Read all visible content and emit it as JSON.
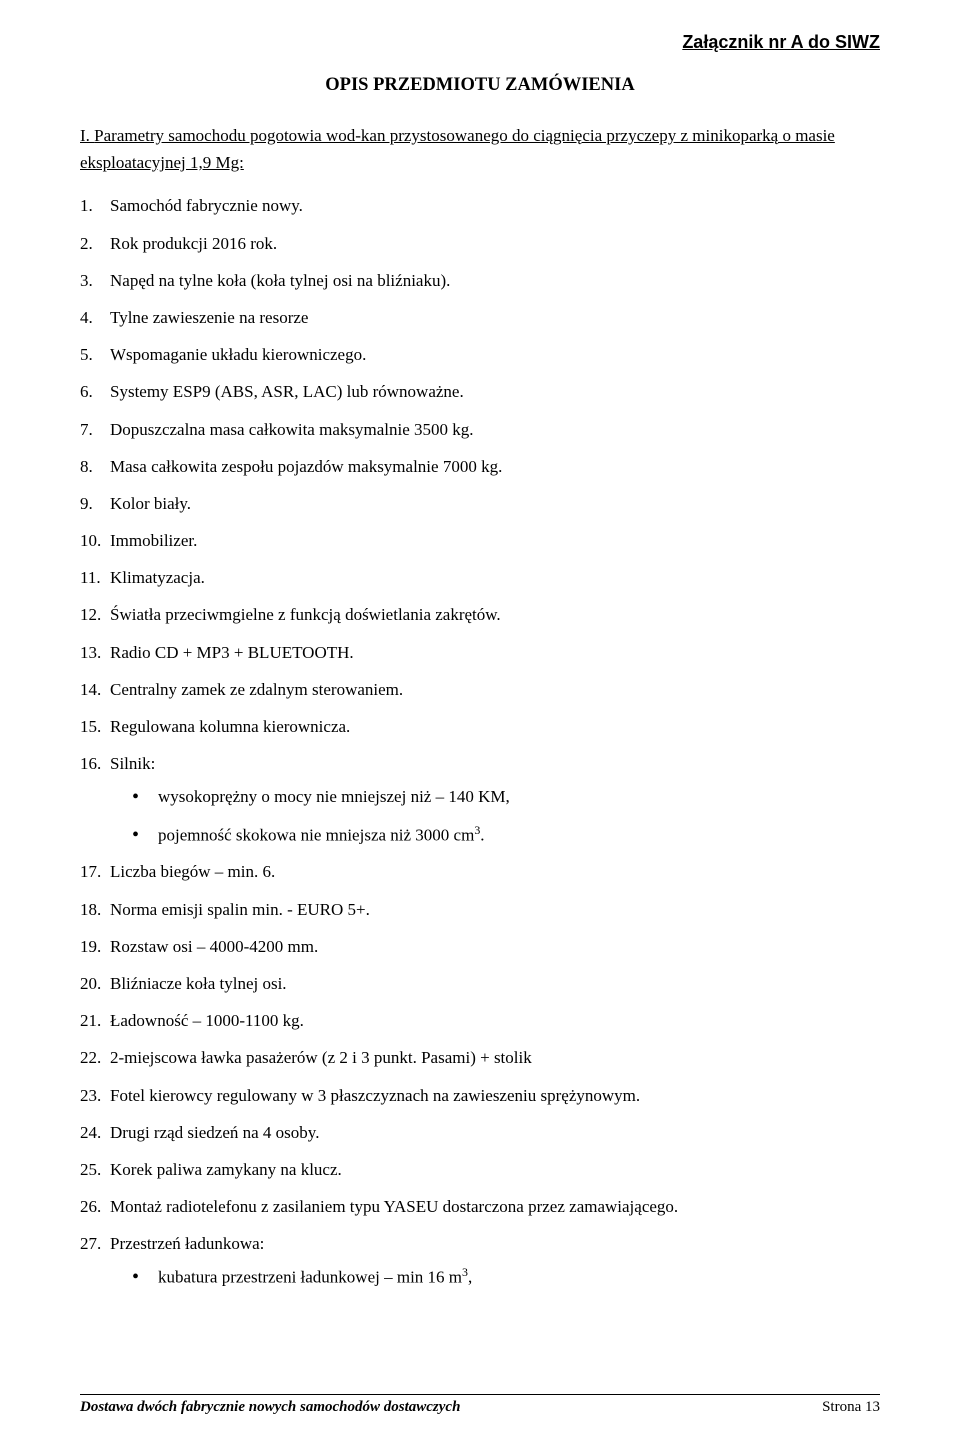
{
  "header": {
    "attachment": "Załącznik nr A do SIWZ"
  },
  "title": "OPIS PRZEDMIOTU ZAMÓWIENIA",
  "intro": {
    "prefix": "I. ",
    "text": "Parametry samochodu pogotowia wod-kan przystosowanego do ciągnięcia przyczepy z minikoparką o masie eksploatacyjnej 1,9 Mg:"
  },
  "items": {
    "i1": "Samochód fabrycznie nowy.",
    "i2": "Rok produkcji 2016 rok.",
    "i3": "Napęd na tylne koła (koła tylnej osi na bliźniaku).",
    "i4": "Tylne zawieszenie na resorze",
    "i5": "Wspomaganie układu kierowniczego.",
    "i6": "Systemy ESP9 (ABS, ASR, LAC) lub równoważne.",
    "i7": "Dopuszczalna masa całkowita maksymalnie 3500 kg.",
    "i8": "Masa całkowita zespołu pojazdów maksymalnie 7000 kg.",
    "i9": "Kolor biały.",
    "i10": "Immobilizer.",
    "i11": "Klimatyzacja.",
    "i12": "Światła przeciwmgielne z funkcją doświetlania zakrętów.",
    "i13": "Radio CD + MP3 + BLUETOOTH.",
    "i14": "Centralny zamek ze zdalnym sterowaniem.",
    "i15": "Regulowana kolumna kierownicza.",
    "i16": "Silnik:",
    "i16sub": {
      "a": "wysokoprężny o mocy nie mniejszej niż – 140 KM,",
      "b_pre": "pojemność skokowa nie mniejsza niż 3000 cm",
      "b_sup": "3",
      "b_post": "."
    },
    "i17": "Liczba biegów – min. 6.",
    "i18": "Norma emisji spalin min. - EURO 5+.",
    "i19": "Rozstaw osi – 4000-4200 mm.",
    "i20": "Bliźniacze koła tylnej osi.",
    "i21": "Ładowność – 1000-1100 kg.",
    "i22": "2-miejscowa ławka pasażerów (z 2 i 3 punkt. Pasami) + stolik",
    "i23": "Fotel kierowcy regulowany w 3 płaszczyznach na zawieszeniu sprężynowym.",
    "i24": "Drugi rząd siedzeń na 4 osoby.",
    "i25": "Korek paliwa zamykany na klucz.",
    "i26": "Montaż radiotelefonu z zasilaniem typu YASEU dostarczona przez zamawiającego.",
    "i27": "Przestrzeń ładunkowa:",
    "i27sub": {
      "a_pre": "kubatura przestrzeni ładunkowej – min 16 m",
      "a_sup": "3",
      "a_post": ","
    }
  },
  "footer": {
    "left": "Dostawa dwóch fabrycznie nowych samochodów dostawczych",
    "right": "Strona 13"
  }
}
